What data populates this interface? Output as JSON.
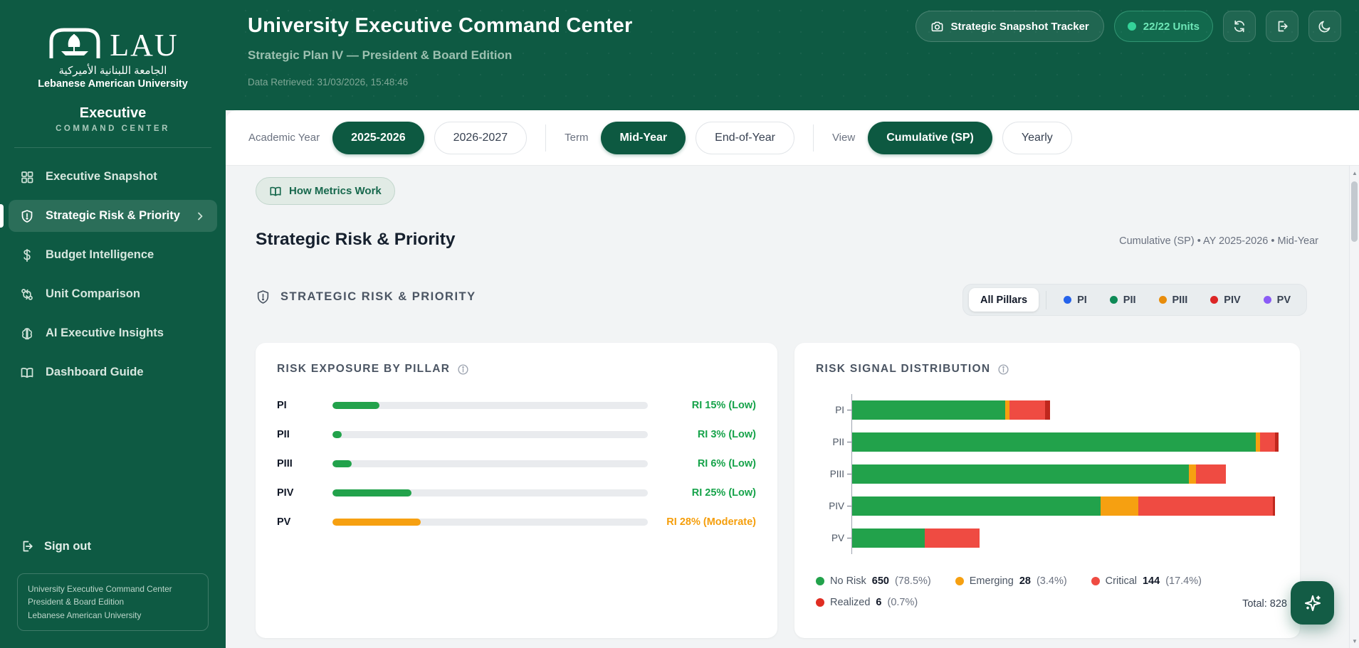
{
  "sidebar": {
    "logo": {
      "word": "LAU",
      "arabic": "الجامعة اللبنانية الأميركية",
      "university": "Lebanese American University"
    },
    "brand_title": "Executive",
    "brand_subtitle": "COMMAND CENTER",
    "items": [
      {
        "label": "Executive Snapshot",
        "icon": "grid-icon"
      },
      {
        "label": "Strategic Risk & Priority",
        "icon": "shield-alert-icon",
        "active": true
      },
      {
        "label": "Budget Intelligence",
        "icon": "dollar-icon"
      },
      {
        "label": "Unit Comparison",
        "icon": "git-compare-icon"
      },
      {
        "label": "AI Executive Insights",
        "icon": "brain-icon"
      },
      {
        "label": "Dashboard Guide",
        "icon": "book-open-icon"
      }
    ],
    "sign_out": "Sign out",
    "footer_lines": [
      "University Executive Command Center",
      "President & Board Edition",
      "Lebanese American University"
    ]
  },
  "header": {
    "title": "University Executive Command Center",
    "subtitle": "Strategic Plan IV — President & Board Edition",
    "data_retrieved": "Data Retrieved: 31/03/2026, 15:48:46",
    "snapshot_button": "Strategic Snapshot Tracker",
    "units_badge": "22/22 Units",
    "accent_green": "#0e5a43",
    "badge_green": "#34d399"
  },
  "filters": {
    "academic_year_label": "Academic Year",
    "academic_year_selected": "2025-2026",
    "academic_year_other": "2026-2027",
    "term_label": "Term",
    "term_selected": "Mid-Year",
    "term_other": "End-of-Year",
    "view_label": "View",
    "view_selected": "Cumulative (SP)",
    "view_other": "Yearly"
  },
  "content": {
    "how_metrics_work": "How Metrics Work",
    "section_title": "Strategic Risk & Priority",
    "context_line": "Cumulative (SP) • AY 2025-2026 • Mid-Year",
    "panel_title": "STRATEGIC RISK & PRIORITY",
    "pillar_filter": {
      "all_label": "All Pillars",
      "pillars": [
        {
          "label": "PI",
          "color": "#2563eb"
        },
        {
          "label": "PII",
          "color": "#0d8a56"
        },
        {
          "label": "PIII",
          "color": "#e88d0c"
        },
        {
          "label": "PIV",
          "color": "#dc2626"
        },
        {
          "label": "PV",
          "color": "#8b5cf6"
        }
      ]
    }
  },
  "chart_data": [
    {
      "type": "bar",
      "title": "RISK EXPOSURE BY PILLAR",
      "categories": [
        "PI",
        "PII",
        "PIII",
        "PIV",
        "PV"
      ],
      "values": [
        15,
        3,
        6,
        25,
        28
      ],
      "labels": [
        "RI 15% (Low)",
        "RI 3% (Low)",
        "RI 6% (Low)",
        "RI 25% (Low)",
        "RI 28% (Moderate)"
      ],
      "bar_colors": [
        "#22a24b",
        "#22a24b",
        "#22a24b",
        "#22a24b",
        "#f6a011"
      ],
      "text_colors": [
        "#16a34a",
        "#16a34a",
        "#16a34a",
        "#16a34a",
        "#f59e0b"
      ],
      "xlim": [
        0,
        100
      ],
      "track_color": "#e9ebee"
    },
    {
      "type": "stacked-bar",
      "title": "RISK SIGNAL DISTRIBUTION",
      "categories": [
        "PI",
        "PII",
        "PIII",
        "PIV",
        "PV"
      ],
      "series": [
        {
          "name": "No Risk",
          "color": "#22a24b",
          "values": [
            82,
            216,
            180,
            133,
            39
          ]
        },
        {
          "name": "Emerging",
          "color": "#f6a011",
          "values": [
            2,
            2,
            4,
            20,
            0
          ]
        },
        {
          "name": "Critical",
          "color": "#ef4b42",
          "values": [
            19,
            8,
            16,
            72,
            29
          ]
        },
        {
          "name": "Realized",
          "color": "#c0271d",
          "values": [
            3,
            2,
            0,
            1,
            0
          ]
        }
      ],
      "legend": [
        {
          "label": "No Risk",
          "value": "650",
          "pct": "(78.5%)",
          "color": "#22a24b"
        },
        {
          "label": "Emerging",
          "value": "28",
          "pct": "(3.4%)",
          "color": "#f6a011"
        },
        {
          "label": "Critical",
          "value": "144",
          "pct": "(17.4%)",
          "color": "#ef4b42"
        },
        {
          "label": "Realized",
          "value": "6",
          "pct": "(0.7%)",
          "color": "#e02d22"
        }
      ],
      "total_label": "Total: 828",
      "legend_position": "bottom",
      "grid": false
    }
  ]
}
